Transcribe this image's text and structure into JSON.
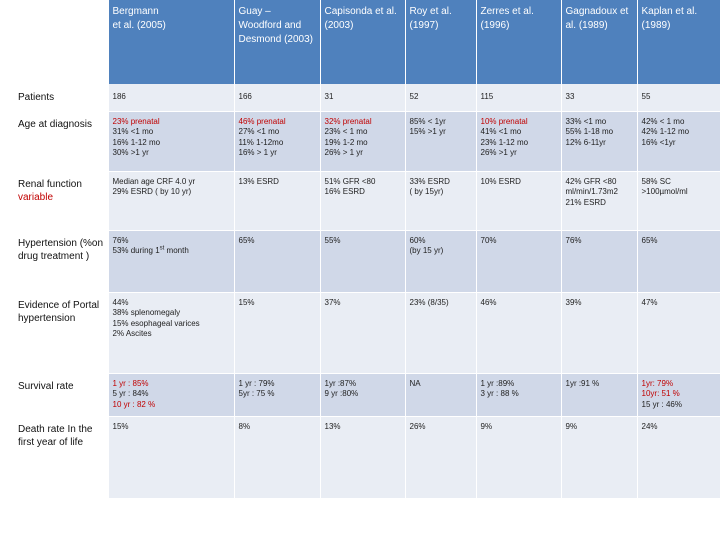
{
  "colors": {
    "header_bg": "#4f81bd",
    "row_light": "#e9edf4",
    "row_dark": "#d0d8e8",
    "highlight": "#c00000"
  },
  "headers": [
    "Bergmann\n et al. (2005)",
    "Guay – Woodford and Desmond (2003)",
    "Capisonda et al. (2003)",
    "Roy et al. (1997)",
    "Zerres et al. (1996)",
    "Gagnadoux et al. (1989)",
    "Kaplan et al. (1989)"
  ],
  "rows": [
    {
      "label": "Patients",
      "cells": [
        [
          {
            "t": "186"
          }
        ],
        [
          {
            "t": "166"
          }
        ],
        [
          {
            "t": "31"
          }
        ],
        [
          {
            "t": "52"
          }
        ],
        [
          {
            "t": "115"
          }
        ],
        [
          {
            "t": "33"
          }
        ],
        [
          {
            "t": "55"
          }
        ]
      ]
    },
    {
      "label": "Age at diagnosis",
      "cells": [
        [
          {
            "t": "23% prenatal",
            "red": true
          },
          {
            "t": "31% <1 mo"
          },
          {
            "t": "16% 1-12 mo"
          },
          {
            "t": "30% >1 yr"
          }
        ],
        [
          {
            "t": "46% prenatal",
            "red": true
          },
          {
            "t": "27% <1 mo"
          },
          {
            "t": "11% 1-12mo"
          },
          {
            "t": "16% > 1 yr"
          }
        ],
        [
          {
            "t": "32% prenatal",
            "red": true
          },
          {
            "t": "23% < 1 mo"
          },
          {
            "t": "19% 1-2 mo"
          },
          {
            "t": "26% > 1 yr"
          }
        ],
        [
          {
            "t": "85% < 1yr"
          },
          {
            "t": "15% >1 yr"
          }
        ],
        [
          {
            "t": "10% prenatal",
            "red": true
          },
          {
            "t": "41% <1 mo"
          },
          {
            "t": "23% 1-12 mo"
          },
          {
            "t": "26% >1 yr"
          }
        ],
        [
          {
            "t": "33% <1 mo"
          },
          {
            "t": "55% 1-18 mo"
          },
          {
            "t": "12% 6-11yr"
          }
        ],
        [
          {
            "t": "42% < 1 mo"
          },
          {
            "t": "42% 1-12 mo"
          },
          {
            "t": "16% <1yr"
          }
        ]
      ]
    },
    {
      "label_lines": [
        {
          "t": "Renal function"
        },
        {
          "t": "variable",
          "red": true
        }
      ],
      "cells": [
        [
          {
            "t": "Median age CRF 4.0 yr"
          },
          {
            "t": "29% ESRD ( by 10 yr)"
          }
        ],
        [
          {
            "t": "13% ESRD"
          }
        ],
        [
          {
            "t": "51% GFR <80"
          },
          {
            "t": "16% ESRD"
          }
        ],
        [
          {
            "t": "33% ESRD"
          },
          {
            "t": "( by 15yr)"
          }
        ],
        [
          {
            "t": "10% ESRD"
          }
        ],
        [
          {
            "t": "42% GFR <80"
          },
          {
            "t": "ml/min/1.73m2"
          },
          {
            "t": "21% ESRD"
          }
        ],
        [
          {
            "t": "58% SC"
          },
          {
            "t": ">100µmol/ml"
          }
        ]
      ]
    },
    {
      "label": "Hypertension (%on drug treatment )",
      "cells": [
        [
          {
            "t": "76%"
          },
          {
            "t": "53% during 1",
            "sup": "st",
            "tail": " month"
          }
        ],
        [
          {
            "t": "65%"
          }
        ],
        [
          {
            "t": "55%"
          }
        ],
        [
          {
            "t": "60%"
          },
          {
            "t": "(by 15 yr)"
          }
        ],
        [
          {
            "t": "70%"
          }
        ],
        [
          {
            "t": "76%"
          }
        ],
        [
          {
            "t": "65%"
          }
        ]
      ]
    },
    {
      "label": "Evidence of Portal hypertension",
      "cells": [
        [
          {
            "t": "44%"
          },
          {
            "t": "38% splenomegaly"
          },
          {
            "t": "15% esophageal varices"
          },
          {
            "t": "2% Ascites"
          }
        ],
        [
          {
            "t": "15%"
          }
        ],
        [
          {
            "t": "37%"
          }
        ],
        [
          {
            "t": "23% (8/35)"
          }
        ],
        [
          {
            "t": "46%"
          }
        ],
        [
          {
            "t": "39%"
          }
        ],
        [
          {
            "t": "47%"
          }
        ]
      ]
    },
    {
      "label": "Survival rate",
      "cells": [
        [
          {
            "t": "1 yr : 85%",
            "red": true
          },
          {
            "t": "5 yr : 84%"
          },
          {
            "t": "10 yr : 82 %",
            "red": true
          }
        ],
        [
          {
            "t": "1 yr : 79%"
          },
          {
            "t": "5yr : 75 %"
          }
        ],
        [
          {
            "t": "1yr :87%"
          },
          {
            "t": "9 yr :80%"
          }
        ],
        [
          {
            "t": "NA"
          }
        ],
        [
          {
            "t": "1 yr :89%"
          },
          {
            "t": "3 yr : 88 %"
          }
        ],
        [
          {
            "t": "1yr :91 %"
          }
        ],
        [
          {
            "t": "1yr: 79%",
            "red": true
          },
          {
            "t": "10yr: 51 %",
            "red": true
          },
          {
            "t": "15 yr : 46%"
          }
        ]
      ]
    },
    {
      "label": "Death rate In the first year of life",
      "cells": [
        [
          {
            "t": "15%"
          }
        ],
        [
          {
            "t": "8%"
          }
        ],
        [
          {
            "t": "13%"
          }
        ],
        [
          {
            "t": "26%"
          }
        ],
        [
          {
            "t": "9%"
          }
        ],
        [
          {
            "t": "9%"
          }
        ],
        [
          {
            "t": "24%"
          }
        ]
      ]
    }
  ]
}
